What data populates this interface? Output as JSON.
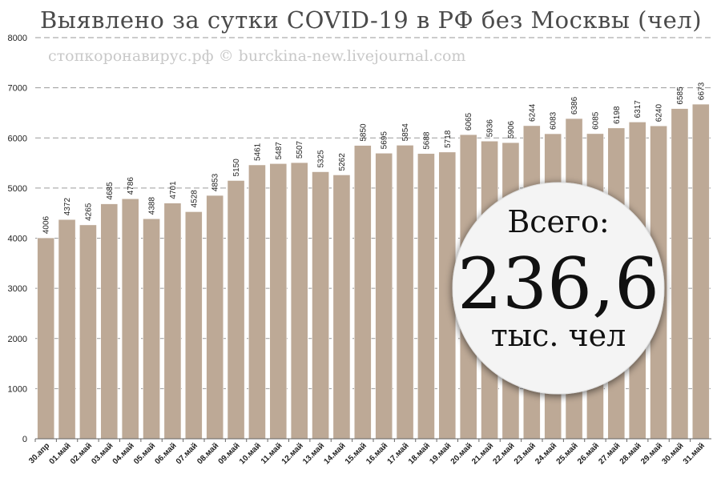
{
  "colors": {
    "bar": "#bda996",
    "bar_stroke": "#ffffff",
    "grid": "#9a9a9a",
    "circle_fill": "#f4f4f4",
    "circle_shadow": "#888888"
  },
  "watermark": "стопкоронавирус.рф © burckina-new.livejournal.com",
  "total_badge": {
    "label": "Всего:",
    "value": "236,6",
    "unit": "тыс. чел"
  },
  "chart_data": {
    "type": "bar",
    "title": "Выявлено за сутки COVID-19 в РФ без Москвы (чел)",
    "xlabel": "",
    "ylabel": "",
    "ylim": [
      0,
      8000
    ],
    "yticks": [
      0,
      1000,
      2000,
      3000,
      4000,
      5000,
      6000,
      7000,
      8000
    ],
    "grid": true,
    "categories": [
      "30.апр",
      "01.май",
      "02.май",
      "03.май",
      "04.май",
      "05.май",
      "06.май",
      "07.май",
      "08.май",
      "09.май",
      "10.май",
      "11.май",
      "12.май",
      "13.май",
      "14.май",
      "15.май",
      "16.май",
      "17.май",
      "18.май",
      "19.май",
      "20.май",
      "21.май",
      "22.май",
      "23.май",
      "24.май",
      "25.май",
      "26.май",
      "27.май",
      "28.май",
      "29.май",
      "30.май",
      "31.май"
    ],
    "values": [
      4006,
      4372,
      4265,
      4685,
      4786,
      4388,
      4701,
      4528,
      4853,
      5150,
      5461,
      5487,
      5507,
      5325,
      5262,
      5850,
      5695,
      5854,
      5688,
      5718,
      6065,
      5936,
      5906,
      6244,
      6083,
      6386,
      6085,
      6198,
      6317,
      6240,
      6585,
      6673
    ],
    "data_labels": true
  }
}
